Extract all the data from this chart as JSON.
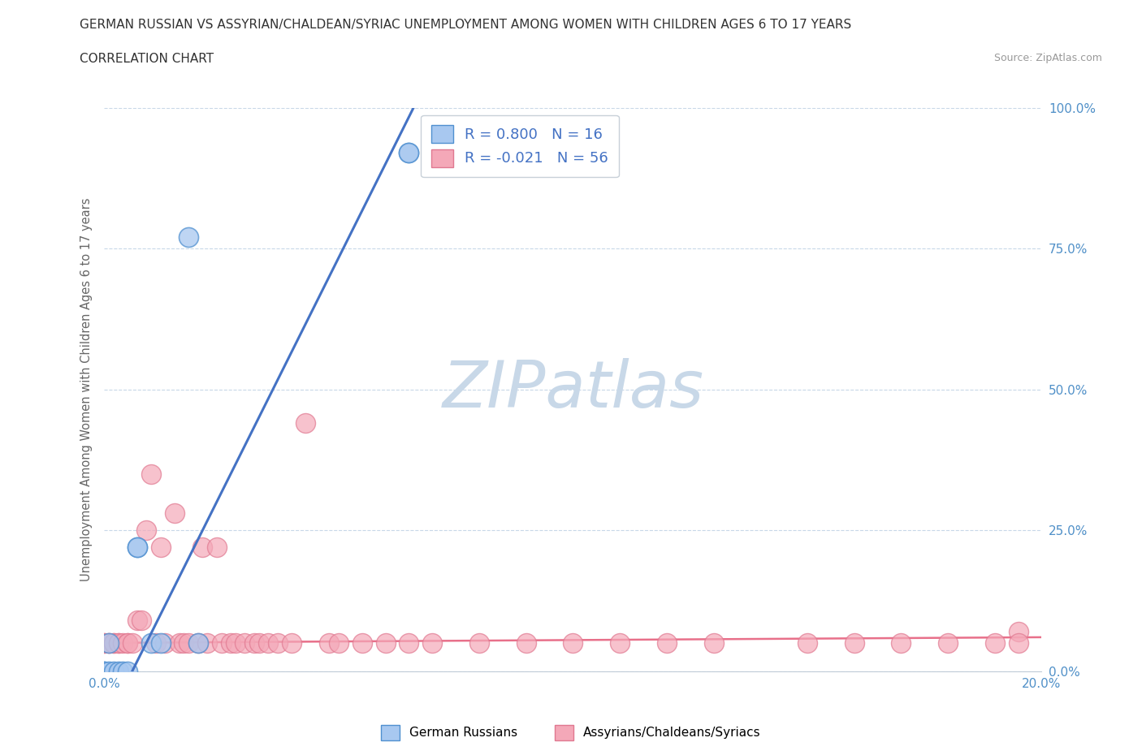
{
  "title": "GERMAN RUSSIAN VS ASSYRIAN/CHALDEAN/SYRIAC UNEMPLOYMENT AMONG WOMEN WITH CHILDREN AGES 6 TO 17 YEARS",
  "subtitle": "CORRELATION CHART",
  "source": "Source: ZipAtlas.com",
  "ylabel": "Unemployment Among Women with Children Ages 6 to 17 years",
  "xlim": [
    0.0,
    0.2
  ],
  "ylim": [
    0.0,
    1.0
  ],
  "xticks": [
    0.0,
    0.2
  ],
  "yticks": [
    0.0,
    0.25,
    0.5,
    0.75,
    1.0
  ],
  "xtick_labels": [
    "0.0%",
    "20.0%"
  ],
  "ytick_labels": [
    "0.0%",
    "25.0%",
    "50.0%",
    "75.0%",
    "100.0%"
  ],
  "blue_face": "#A8C8F0",
  "blue_edge": "#5090D0",
  "pink_face": "#F4A8B8",
  "pink_edge": "#E07890",
  "blue_line": "#4472C4",
  "pink_line": "#E8708A",
  "R_blue": 0.8,
  "N_blue": 16,
  "R_pink": -0.021,
  "N_pink": 56,
  "label_blue": "German Russians",
  "label_pink": "Assyrians/Chaldeans/Syriacs",
  "watermark": "ZIPatlas",
  "watermark_color": "#C8D8E8",
  "blue_line_x": [
    0.006,
    0.066
  ],
  "blue_line_y": [
    0.0,
    1.0
  ],
  "pink_line_x": [
    0.0,
    0.2
  ],
  "pink_line_y": [
    0.05,
    0.06
  ],
  "german_russian_x": [
    0.0,
    0.0,
    0.001,
    0.001,
    0.002,
    0.003,
    0.004,
    0.005,
    0.007,
    0.007,
    0.01,
    0.012,
    0.018,
    0.02,
    0.065,
    0.065
  ],
  "german_russian_y": [
    0.0,
    0.0,
    0.0,
    0.05,
    0.0,
    0.0,
    0.0,
    0.0,
    0.22,
    0.22,
    0.05,
    0.05,
    0.77,
    0.05,
    0.92,
    0.92
  ],
  "assyrian_x": [
    0.0,
    0.0,
    0.001,
    0.001,
    0.002,
    0.002,
    0.003,
    0.003,
    0.004,
    0.005,
    0.005,
    0.006,
    0.007,
    0.008,
    0.009,
    0.01,
    0.011,
    0.012,
    0.013,
    0.015,
    0.016,
    0.017,
    0.018,
    0.02,
    0.021,
    0.022,
    0.024,
    0.025,
    0.027,
    0.028,
    0.03,
    0.032,
    0.033,
    0.035,
    0.037,
    0.04,
    0.043,
    0.048,
    0.05,
    0.055,
    0.06,
    0.065,
    0.07,
    0.08,
    0.09,
    0.1,
    0.11,
    0.12,
    0.13,
    0.15,
    0.16,
    0.17,
    0.18,
    0.19,
    0.195,
    0.195
  ],
  "assyrian_y": [
    0.05,
    0.05,
    0.05,
    0.05,
    0.05,
    0.05,
    0.05,
    0.05,
    0.05,
    0.05,
    0.05,
    0.05,
    0.09,
    0.09,
    0.25,
    0.35,
    0.05,
    0.22,
    0.05,
    0.28,
    0.05,
    0.05,
    0.05,
    0.05,
    0.22,
    0.05,
    0.22,
    0.05,
    0.05,
    0.05,
    0.05,
    0.05,
    0.05,
    0.05,
    0.05,
    0.05,
    0.44,
    0.05,
    0.05,
    0.05,
    0.05,
    0.05,
    0.05,
    0.05,
    0.05,
    0.05,
    0.05,
    0.05,
    0.05,
    0.05,
    0.05,
    0.05,
    0.05,
    0.05,
    0.07,
    0.05
  ]
}
